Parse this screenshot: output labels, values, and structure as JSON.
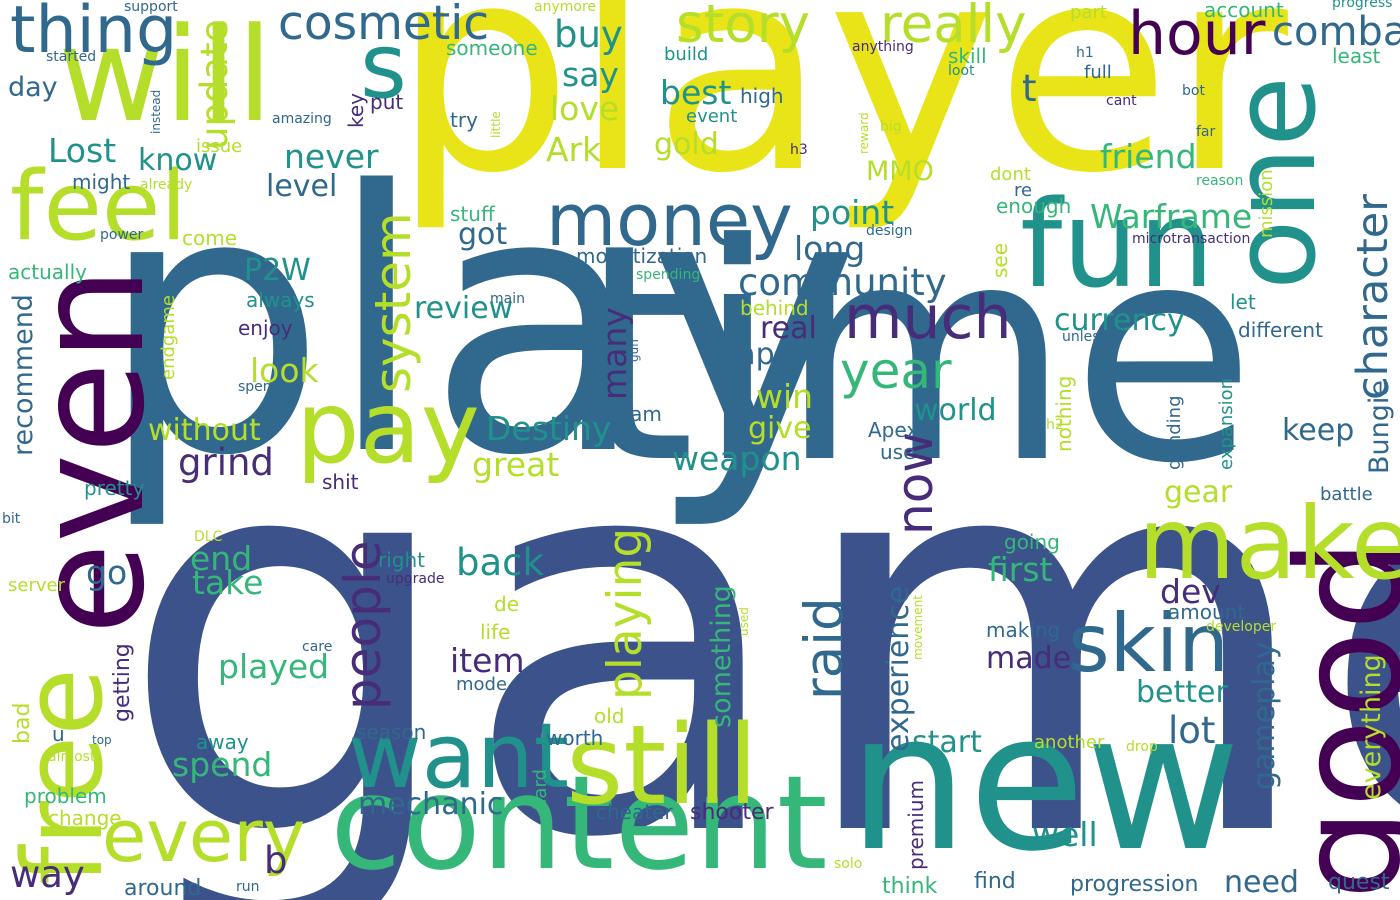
{
  "palette": {
    "dark_purple": "#440154",
    "indigo": "#3b528b",
    "steel_blue": "#31688e",
    "teal": "#21918c",
    "green": "#35b779",
    "lime": "#b5de2b",
    "yellow": "#fde725"
  },
  "words": [
    {
      "text": "game",
      "color": "#3b528b"
    },
    {
      "text": "play",
      "color": "#31688e"
    },
    {
      "text": "time",
      "color": "#31688e"
    },
    {
      "text": "player",
      "color": "#e8e417"
    },
    {
      "text": "new",
      "color": "#21918c"
    },
    {
      "text": "even",
      "color": "#440154"
    },
    {
      "text": "free",
      "color": "#b5de2b"
    },
    {
      "text": "will",
      "color": "#b5de2b"
    },
    {
      "text": "content",
      "color": "#35b779"
    },
    {
      "text": "good",
      "color": "#440154"
    },
    {
      "text": "one",
      "color": "#21918c"
    },
    {
      "text": "fun",
      "color": "#21918c"
    },
    {
      "text": "still",
      "color": "#b5de2b"
    },
    {
      "text": "make",
      "color": "#b5de2b"
    },
    {
      "text": "want",
      "color": "#21918c"
    },
    {
      "text": "pay",
      "color": "#b5de2b"
    },
    {
      "text": "feel",
      "color": "#b5de2b"
    },
    {
      "text": "every",
      "color": "#b5de2b"
    },
    {
      "text": "skin",
      "color": "#31688e"
    },
    {
      "text": "money",
      "color": "#31688e"
    },
    {
      "text": "s",
      "color": "#21918c"
    },
    {
      "text": "thing",
      "color": "#31688e"
    },
    {
      "text": "cosmetic",
      "color": "#31688e"
    },
    {
      "text": "story",
      "color": "#b5de2b"
    },
    {
      "text": "really",
      "color": "#b5de2b"
    },
    {
      "text": "hour",
      "color": "#440154"
    },
    {
      "text": "combat",
      "color": "#31688e"
    },
    {
      "text": "much",
      "color": "#472c7a"
    },
    {
      "text": "character",
      "color": "#31688e"
    },
    {
      "text": "system",
      "color": "#b5de2b"
    },
    {
      "text": "raid",
      "color": "#31688e"
    },
    {
      "text": "people",
      "color": "#472c7a"
    },
    {
      "text": "playing",
      "color": "#b5de2b"
    },
    {
      "text": "year",
      "color": "#35b779"
    },
    {
      "text": "now",
      "color": "#472c7a"
    },
    {
      "text": "update",
      "color": "#b5de2b"
    },
    {
      "text": "Destiny",
      "color": "#21918c"
    },
    {
      "text": "Warframe",
      "color": "#35b779"
    },
    {
      "text": "community",
      "color": "#31688e"
    },
    {
      "text": "best",
      "color": "#21918c"
    },
    {
      "text": "Lost",
      "color": "#21918c"
    },
    {
      "text": "Ark",
      "color": "#b5de2b"
    },
    {
      "text": "love",
      "color": "#b5de2b"
    },
    {
      "text": "buy",
      "color": "#21918c"
    },
    {
      "text": "say",
      "color": "#21918c"
    },
    {
      "text": "friend",
      "color": "#35b779"
    },
    {
      "text": "point",
      "color": "#21918c"
    },
    {
      "text": "long",
      "color": "#31688e"
    },
    {
      "text": "gold",
      "color": "#b5de2b"
    },
    {
      "text": "MMO",
      "color": "#b5de2b"
    },
    {
      "text": "know",
      "color": "#21918c"
    },
    {
      "text": "never",
      "color": "#21918c"
    },
    {
      "text": "level",
      "color": "#31688e"
    },
    {
      "text": "got",
      "color": "#31688e"
    },
    {
      "text": "P2W",
      "color": "#21918c"
    },
    {
      "text": "review",
      "color": "#21918c"
    },
    {
      "text": "currency",
      "color": "#21918c"
    },
    {
      "text": "weapon",
      "color": "#21918c"
    },
    {
      "text": "grind",
      "color": "#472c7a"
    },
    {
      "text": "great",
      "color": "#b5de2b"
    },
    {
      "text": "world",
      "color": "#21918c"
    },
    {
      "text": "keep",
      "color": "#31688e"
    },
    {
      "text": "back",
      "color": "#21918c"
    },
    {
      "text": "played",
      "color": "#35b779"
    },
    {
      "text": "item",
      "color": "#472c7a"
    },
    {
      "text": "take",
      "color": "#35b779"
    },
    {
      "text": "end",
      "color": "#35b779"
    },
    {
      "text": "go",
      "color": "#31688e"
    },
    {
      "text": "spend",
      "color": "#35b779"
    },
    {
      "text": "mechanic",
      "color": "#31688e"
    },
    {
      "text": "way",
      "color": "#472c7a"
    },
    {
      "text": "b",
      "color": "#472c7a"
    },
    {
      "text": "made",
      "color": "#472c7a"
    },
    {
      "text": "lot",
      "color": "#31688e"
    },
    {
      "text": "well",
      "color": "#21918c"
    },
    {
      "text": "need",
      "color": "#31688e"
    },
    {
      "text": "start",
      "color": "#21918c"
    },
    {
      "text": "first",
      "color": "#35b779"
    },
    {
      "text": "dev",
      "color": "#472c7a"
    },
    {
      "text": "gear",
      "color": "#b5de2b"
    },
    {
      "text": "better",
      "color": "#21918c"
    },
    {
      "text": "gameplay",
      "color": "#31688e"
    },
    {
      "text": "everything",
      "color": "#b5de2b"
    },
    {
      "text": "Bungie",
      "color": "#31688e"
    },
    {
      "text": "experience",
      "color": "#31688e"
    },
    {
      "text": "something",
      "color": "#35b779"
    },
    {
      "text": "map",
      "color": "#31688e"
    },
    {
      "text": "real",
      "color": "#472c7a"
    },
    {
      "text": "win",
      "color": "#b5de2b"
    },
    {
      "text": "give",
      "color": "#b5de2b"
    },
    {
      "text": "look",
      "color": "#b5de2b"
    },
    {
      "text": "without",
      "color": "#b5de2b"
    },
    {
      "text": "recommend",
      "color": "#31688e"
    },
    {
      "text": "many",
      "color": "#472c7a"
    },
    {
      "text": "day",
      "color": "#31688e"
    },
    {
      "text": "t",
      "color": "#31688e"
    },
    {
      "text": "account",
      "color": "#35b779"
    },
    {
      "text": "progression",
      "color": "#31688e"
    },
    {
      "text": "quest",
      "color": "#31688e"
    },
    {
      "text": "find",
      "color": "#31688e"
    },
    {
      "text": "think",
      "color": "#35b779"
    },
    {
      "text": "worth",
      "color": "#31688e"
    },
    {
      "text": "season",
      "color": "#31688e"
    },
    {
      "text": "shooter",
      "color": "#472c7a"
    },
    {
      "text": "cheater",
      "color": "#31688e"
    },
    {
      "text": "premium",
      "color": "#472c7a"
    },
    {
      "text": "around",
      "color": "#31688e"
    },
    {
      "text": "problem",
      "color": "#35b779"
    },
    {
      "text": "change",
      "color": "#b5de2b"
    },
    {
      "text": "bad",
      "color": "#b5de2b"
    },
    {
      "text": "u",
      "color": "#31688e"
    },
    {
      "text": "away",
      "color": "#21918c"
    },
    {
      "text": "old",
      "color": "#b5de2b"
    },
    {
      "text": "mode",
      "color": "#31688e"
    },
    {
      "text": "life",
      "color": "#b5de2b"
    },
    {
      "text": "hard",
      "color": "#35b779"
    },
    {
      "text": "another",
      "color": "#b5de2b"
    },
    {
      "text": "amount",
      "color": "#31688e"
    },
    {
      "text": "making",
      "color": "#31688e"
    },
    {
      "text": "going",
      "color": "#35b779"
    },
    {
      "text": "getting",
      "color": "#472c7a"
    },
    {
      "text": "server",
      "color": "#b5de2b"
    },
    {
      "text": "pretty",
      "color": "#21918c"
    },
    {
      "text": "shit",
      "color": "#472c7a"
    },
    {
      "text": "right",
      "color": "#21918c"
    },
    {
      "text": "upgrade",
      "color": "#472c7a"
    },
    {
      "text": "de",
      "color": "#b5de2b"
    },
    {
      "text": "Apex",
      "color": "#31688e"
    },
    {
      "text": "use",
      "color": "#31688e"
    },
    {
      "text": "team",
      "color": "#31688e"
    },
    {
      "text": "enjoy",
      "color": "#472c7a"
    },
    {
      "text": "always",
      "color": "#21918c"
    },
    {
      "text": "behind",
      "color": "#b5de2b"
    },
    {
      "text": "monetization",
      "color": "#31688e"
    },
    {
      "text": "stuff",
      "color": "#35b779"
    },
    {
      "text": "come",
      "color": "#b5de2b"
    },
    {
      "text": "actually",
      "color": "#35b779"
    },
    {
      "text": "might",
      "color": "#31688e"
    },
    {
      "text": "issue",
      "color": "#b5de2b"
    },
    {
      "text": "try",
      "color": "#31688e"
    },
    {
      "text": "put",
      "color": "#472c7a"
    },
    {
      "text": "key",
      "color": "#472c7a"
    },
    {
      "text": "high",
      "color": "#31688e"
    },
    {
      "text": "event",
      "color": "#21918c"
    },
    {
      "text": "build",
      "color": "#21918c"
    },
    {
      "text": "someone",
      "color": "#35b779"
    },
    {
      "text": "skill",
      "color": "#35b779"
    },
    {
      "text": "full",
      "color": "#31688e"
    },
    {
      "text": "part",
      "color": "#b5de2b"
    },
    {
      "text": "least",
      "color": "#35b779"
    },
    {
      "text": "mission",
      "color": "#b5de2b"
    },
    {
      "text": "dont",
      "color": "#b5de2b"
    },
    {
      "text": "re",
      "color": "#31688e"
    },
    {
      "text": "enough",
      "color": "#35b779"
    },
    {
      "text": "see",
      "color": "#b5de2b"
    },
    {
      "text": "let",
      "color": "#21918c"
    },
    {
      "text": "different",
      "color": "#31688e"
    },
    {
      "text": "nothing",
      "color": "#b5de2b"
    },
    {
      "text": "expansion",
      "color": "#21918c"
    },
    {
      "text": "grinding",
      "color": "#31688e"
    },
    {
      "text": "battle",
      "color": "#31688e"
    },
    {
      "text": "support",
      "color": "#31688e"
    },
    {
      "text": "anymore",
      "color": "#b5de2b"
    },
    {
      "text": "progress",
      "color": "#21918c"
    },
    {
      "text": "started",
      "color": "#31688e"
    },
    {
      "text": "anything",
      "color": "#472c7a"
    },
    {
      "text": "loot",
      "color": "#21918c"
    },
    {
      "text": "h1",
      "color": "#31688e"
    },
    {
      "text": "cant",
      "color": "#472c7a"
    },
    {
      "text": "bot",
      "color": "#31688e"
    },
    {
      "text": "far",
      "color": "#31688e"
    },
    {
      "text": "reason",
      "color": "#35b779"
    },
    {
      "text": "big",
      "color": "#b5de2b"
    },
    {
      "text": "reward",
      "color": "#b5de2b"
    },
    {
      "text": "amazing",
      "color": "#31688e"
    },
    {
      "text": "instead",
      "color": "#31688e"
    },
    {
      "text": "little",
      "color": "#b5de2b"
    },
    {
      "text": "already",
      "color": "#b5de2b"
    },
    {
      "text": "h3",
      "color": "#472c7a"
    },
    {
      "text": "design",
      "color": "#31688e"
    },
    {
      "text": "microtransaction",
      "color": "#472c7a"
    },
    {
      "text": "power",
      "color": "#31688e"
    },
    {
      "text": "spending",
      "color": "#35b779"
    },
    {
      "text": "main",
      "color": "#31688e"
    },
    {
      "text": "gun",
      "color": "#31688e"
    },
    {
      "text": "unless",
      "color": "#31688e"
    },
    {
      "text": "endgame",
      "color": "#b5de2b"
    },
    {
      "text": "spent",
      "color": "#31688e"
    },
    {
      "text": "h2",
      "color": "#b5de2b"
    },
    {
      "text": "DLC",
      "color": "#b5de2b"
    },
    {
      "text": "bit",
      "color": "#31688e"
    },
    {
      "text": "care",
      "color": "#31688e"
    },
    {
      "text": "used",
      "color": "#b5de2b"
    },
    {
      "text": "movement",
      "color": "#b5de2b"
    },
    {
      "text": "developer",
      "color": "#b5de2b"
    },
    {
      "text": "top",
      "color": "#31688e"
    },
    {
      "text": "almost",
      "color": "#b5de2b"
    },
    {
      "text": "drop",
      "color": "#b5de2b"
    },
    {
      "text": "solo",
      "color": "#b5de2b"
    },
    {
      "text": "run",
      "color": "#31688e"
    }
  ]
}
